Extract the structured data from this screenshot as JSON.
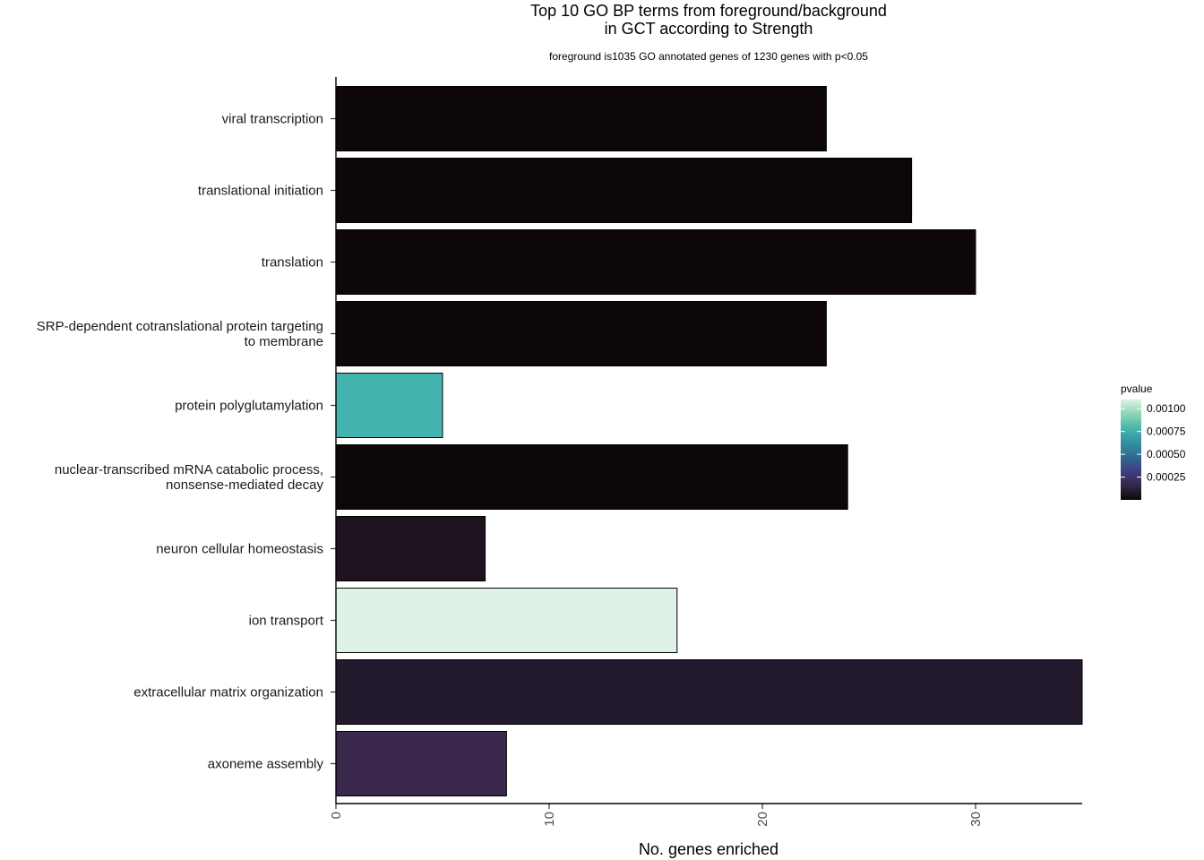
{
  "chart_data": {
    "type": "bar",
    "orientation": "horizontal",
    "title": "Top 10 GO BP terms from foreground/background\nin GCT according to Strength",
    "subtitle": "foreground is1035 GO annotated genes of 1230 genes with p<0.05",
    "xlabel": "No. genes enriched",
    "ylabel": "",
    "xlim": [
      0,
      35
    ],
    "xticks": [
      0,
      10,
      20,
      30
    ],
    "xtick_labels": [
      "0",
      "10",
      "20",
      "30"
    ],
    "grid": false,
    "categories": [
      "viral transcription",
      "translational initiation",
      "translation",
      "SRP-dependent cotranslational protein targeting\nto membrane",
      "protein polyglutamylation",
      "nuclear-transcribed mRNA catabolic process,\nnonsense-mediated decay",
      "neuron cellular homeostasis",
      "ion transport",
      "extracellular matrix organization",
      "axoneme assembly"
    ],
    "values": [
      23,
      27,
      30,
      23,
      5,
      24,
      7,
      16,
      35,
      8
    ],
    "pvalues": [
      1e-05,
      1e-05,
      1e-05,
      1e-05,
      0.00072,
      1e-05,
      5e-05,
      0.0011,
      0.00012,
      0.00028
    ],
    "colors": [
      "#0e0709",
      "#0e0709",
      "#0e0709",
      "#0e0709",
      "#43b5ae",
      "#0e0709",
      "#1d121d",
      "#def3e5",
      "#241a2e",
      "#3a284d"
    ],
    "legend": {
      "title": "pvalue",
      "position": "right",
      "labels": [
        "0.00100",
        "0.00075",
        "0.00050",
        "0.00025"
      ],
      "label_values": [
        0.001,
        0.00075,
        0.0005,
        0.00025
      ],
      "range": [
        0.0,
        0.0011
      ],
      "gradient": [
        "#0e0709",
        "#342847",
        "#3d3f80",
        "#2e6b92",
        "#3491a0",
        "#48b5ae",
        "#8dd5b5",
        "#def3e5"
      ]
    }
  }
}
